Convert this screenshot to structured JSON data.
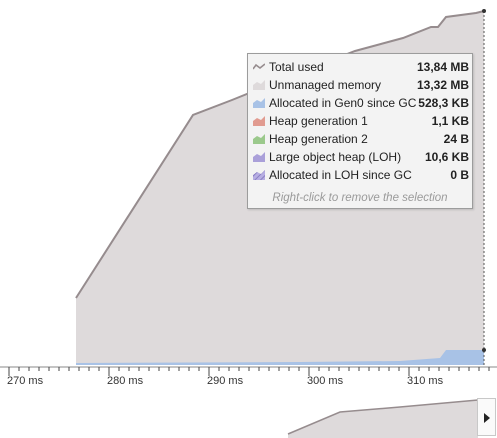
{
  "colors": {
    "total_line": "#968c8e",
    "unmanaged": "#dedadb",
    "gen0": "#a8c2e6",
    "gen1": "#e19b90",
    "gen2": "#9bc98c",
    "loh": "#aaa0d9",
    "loh_alloc": "#8f84c4"
  },
  "axis": {
    "ticks": [
      "270 ms",
      "280 ms",
      "290 ms",
      "300 ms",
      "310 ms"
    ]
  },
  "tooltip": {
    "rows": [
      {
        "name": "total-used",
        "label": "Total used",
        "value": "13,84 MB",
        "icon": "line-icon"
      },
      {
        "name": "unmanaged-memory",
        "label": "Unmanaged memory",
        "value": "13,32 MB",
        "icon": "area-icon"
      },
      {
        "name": "allocated-gen0",
        "label": "Allocated in Gen0 since GC",
        "value": "528,3 KB",
        "icon": "area-icon"
      },
      {
        "name": "heap-gen1",
        "label": "Heap generation 1",
        "value": "1,1 KB",
        "icon": "area-icon"
      },
      {
        "name": "heap-gen2",
        "label": "Heap generation 2",
        "value": "24 B",
        "icon": "area-icon"
      },
      {
        "name": "loh",
        "label": "Large object heap (LOH)",
        "value": "10,6 KB",
        "icon": "area-icon"
      },
      {
        "name": "allocated-loh",
        "label": "Allocated in LOH since GC",
        "value": "0 B",
        "icon": "hatched-area-icon"
      }
    ],
    "hint": "Right-click to remove the selection"
  },
  "overview": {
    "scroll_button": "chevron-right-icon"
  }
}
